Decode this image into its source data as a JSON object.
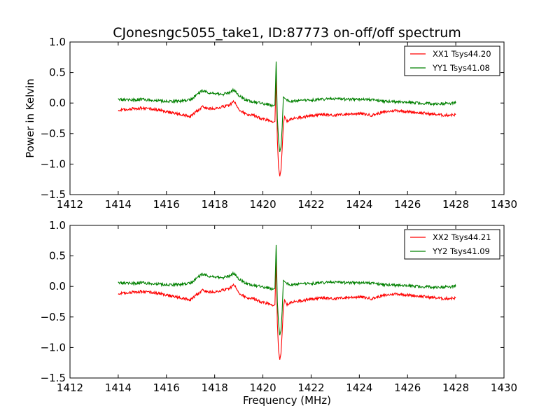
{
  "figure": {
    "title": "CJonesngc5055_take1, ID:87773 on-off/off spectrum"
  },
  "chart_data": [
    {
      "type": "line",
      "title": "CJonesngc5055_take1, ID:87773 on-off/off spectrum",
      "xlabel": "",
      "ylabel": "Power in Kelvin",
      "xlim": [
        1412,
        1430
      ],
      "ylim": [
        -1.5,
        1.0
      ],
      "xticks": [
        "1412",
        "1414",
        "1416",
        "1418",
        "1420",
        "1422",
        "1424",
        "1426",
        "1428",
        "1430"
      ],
      "yticks": [
        "1.0",
        "0.5",
        "0.0",
        "−0.5",
        "−1.0",
        "−1.5"
      ],
      "grid": false,
      "legend_position": "top-right",
      "series": [
        {
          "name": "XX1 Tsys44.20",
          "color": "#ff0000",
          "x": [
            1414.0,
            1414.5,
            1415.0,
            1415.5,
            1416.0,
            1416.5,
            1417.0,
            1417.3,
            1417.5,
            1417.8,
            1418.0,
            1418.3,
            1418.6,
            1418.8,
            1419.0,
            1419.3,
            1419.6,
            1419.9,
            1420.2,
            1420.4,
            1420.5,
            1420.55,
            1420.6,
            1420.65,
            1420.7,
            1420.75,
            1420.8,
            1420.85,
            1420.9,
            1421.0,
            1421.2,
            1421.5,
            1422.0,
            1422.5,
            1423.0,
            1423.5,
            1424.0,
            1424.5,
            1425.0,
            1425.5,
            1426.0,
            1426.5,
            1427.0,
            1427.5,
            1428.0
          ],
          "values": [
            -0.12,
            -0.1,
            -0.08,
            -0.1,
            -0.14,
            -0.18,
            -0.22,
            -0.12,
            -0.06,
            -0.09,
            -0.1,
            -0.06,
            -0.04,
            0.03,
            -0.1,
            -0.18,
            -0.2,
            -0.25,
            -0.28,
            -0.32,
            -0.3,
            0.45,
            -0.6,
            -1.05,
            -1.2,
            -1.1,
            -0.75,
            -0.35,
            -0.22,
            -0.3,
            -0.26,
            -0.24,
            -0.21,
            -0.19,
            -0.2,
            -0.18,
            -0.17,
            -0.2,
            -0.15,
            -0.12,
            -0.14,
            -0.16,
            -0.18,
            -0.2,
            -0.19
          ]
        },
        {
          "name": "YY1 Tsys41.08",
          "color": "#008000",
          "x": [
            1414.0,
            1414.5,
            1415.0,
            1415.5,
            1416.0,
            1416.5,
            1417.0,
            1417.3,
            1417.5,
            1417.8,
            1418.0,
            1418.3,
            1418.6,
            1418.8,
            1419.0,
            1419.3,
            1419.6,
            1419.9,
            1420.2,
            1420.4,
            1420.5,
            1420.55,
            1420.6,
            1420.65,
            1420.7,
            1420.75,
            1420.8,
            1420.85,
            1420.9,
            1421.0,
            1421.2,
            1421.5,
            1422.0,
            1422.5,
            1423.0,
            1423.5,
            1424.0,
            1424.5,
            1425.0,
            1425.5,
            1426.0,
            1426.5,
            1427.0,
            1427.5,
            1428.0
          ],
          "values": [
            0.06,
            0.05,
            0.06,
            0.04,
            0.03,
            0.03,
            0.05,
            0.15,
            0.2,
            0.17,
            0.15,
            0.14,
            0.17,
            0.22,
            0.12,
            0.05,
            0.02,
            0.0,
            -0.02,
            -0.05,
            -0.03,
            0.68,
            -0.25,
            -0.6,
            -0.8,
            -0.72,
            -0.4,
            0.1,
            0.08,
            0.05,
            0.03,
            0.04,
            0.05,
            0.06,
            0.07,
            0.06,
            0.06,
            0.05,
            0.03,
            0.02,
            0.01,
            0.0,
            -0.01,
            -0.01,
            0.0
          ]
        }
      ]
    },
    {
      "type": "line",
      "title": "",
      "xlabel": "Frequency (MHz)",
      "ylabel": "",
      "xlim": [
        1412,
        1430
      ],
      "ylim": [
        -1.5,
        1.0
      ],
      "xticks": [
        "1412",
        "1414",
        "1416",
        "1418",
        "1420",
        "1422",
        "1424",
        "1426",
        "1428",
        "1430"
      ],
      "yticks": [
        "1.0",
        "0.5",
        "0.0",
        "−0.5",
        "−1.0",
        "−1.5"
      ],
      "grid": false,
      "legend_position": "top-right",
      "series": [
        {
          "name": "XX2 Tsys44.21",
          "color": "#ff0000",
          "x": [
            1414.0,
            1414.5,
            1415.0,
            1415.5,
            1416.0,
            1416.5,
            1417.0,
            1417.3,
            1417.5,
            1417.8,
            1418.0,
            1418.3,
            1418.6,
            1418.8,
            1419.0,
            1419.3,
            1419.6,
            1419.9,
            1420.2,
            1420.4,
            1420.5,
            1420.55,
            1420.6,
            1420.65,
            1420.7,
            1420.75,
            1420.8,
            1420.85,
            1420.9,
            1421.0,
            1421.2,
            1421.5,
            1422.0,
            1422.5,
            1423.0,
            1423.5,
            1424.0,
            1424.5,
            1425.0,
            1425.5,
            1426.0,
            1426.5,
            1427.0,
            1427.5,
            1428.0
          ],
          "values": [
            -0.12,
            -0.1,
            -0.08,
            -0.1,
            -0.14,
            -0.18,
            -0.22,
            -0.12,
            -0.06,
            -0.09,
            -0.1,
            -0.06,
            -0.04,
            0.03,
            -0.1,
            -0.18,
            -0.2,
            -0.25,
            -0.28,
            -0.32,
            -0.3,
            0.45,
            -0.6,
            -1.05,
            -1.2,
            -1.1,
            -0.75,
            -0.35,
            -0.22,
            -0.3,
            -0.26,
            -0.24,
            -0.21,
            -0.19,
            -0.2,
            -0.18,
            -0.17,
            -0.2,
            -0.15,
            -0.12,
            -0.14,
            -0.16,
            -0.18,
            -0.2,
            -0.19
          ]
        },
        {
          "name": "YY2 Tsys41.09",
          "color": "#008000",
          "x": [
            1414.0,
            1414.5,
            1415.0,
            1415.5,
            1416.0,
            1416.5,
            1417.0,
            1417.3,
            1417.5,
            1417.8,
            1418.0,
            1418.3,
            1418.6,
            1418.8,
            1419.0,
            1419.3,
            1419.6,
            1419.9,
            1420.2,
            1420.4,
            1420.5,
            1420.55,
            1420.6,
            1420.65,
            1420.7,
            1420.75,
            1420.8,
            1420.85,
            1420.9,
            1421.0,
            1421.2,
            1421.5,
            1422.0,
            1422.5,
            1423.0,
            1423.5,
            1424.0,
            1424.5,
            1425.0,
            1425.5,
            1426.0,
            1426.5,
            1427.0,
            1427.5,
            1428.0
          ],
          "values": [
            0.06,
            0.05,
            0.06,
            0.04,
            0.03,
            0.03,
            0.05,
            0.15,
            0.2,
            0.17,
            0.15,
            0.14,
            0.17,
            0.22,
            0.12,
            0.05,
            0.02,
            0.0,
            -0.02,
            -0.05,
            -0.03,
            0.68,
            -0.25,
            -0.6,
            -0.8,
            -0.72,
            -0.4,
            0.1,
            0.08,
            0.05,
            0.03,
            0.04,
            0.05,
            0.06,
            0.07,
            0.06,
            0.06,
            0.05,
            0.03,
            0.02,
            0.01,
            0.0,
            -0.01,
            -0.01,
            0.0
          ]
        }
      ]
    }
  ]
}
